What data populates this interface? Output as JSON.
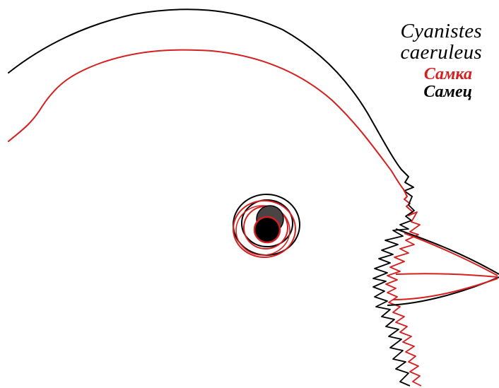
{
  "legend": {
    "species_line1": "Cyanistes",
    "species_line2": "caeruleus",
    "female_label": "Самка",
    "male_label": "Самец"
  },
  "colors": {
    "background": "#ffffff",
    "female": "#d42020",
    "male": "#000000",
    "iris": "#4a4444",
    "pupil": "#000000"
  }
}
